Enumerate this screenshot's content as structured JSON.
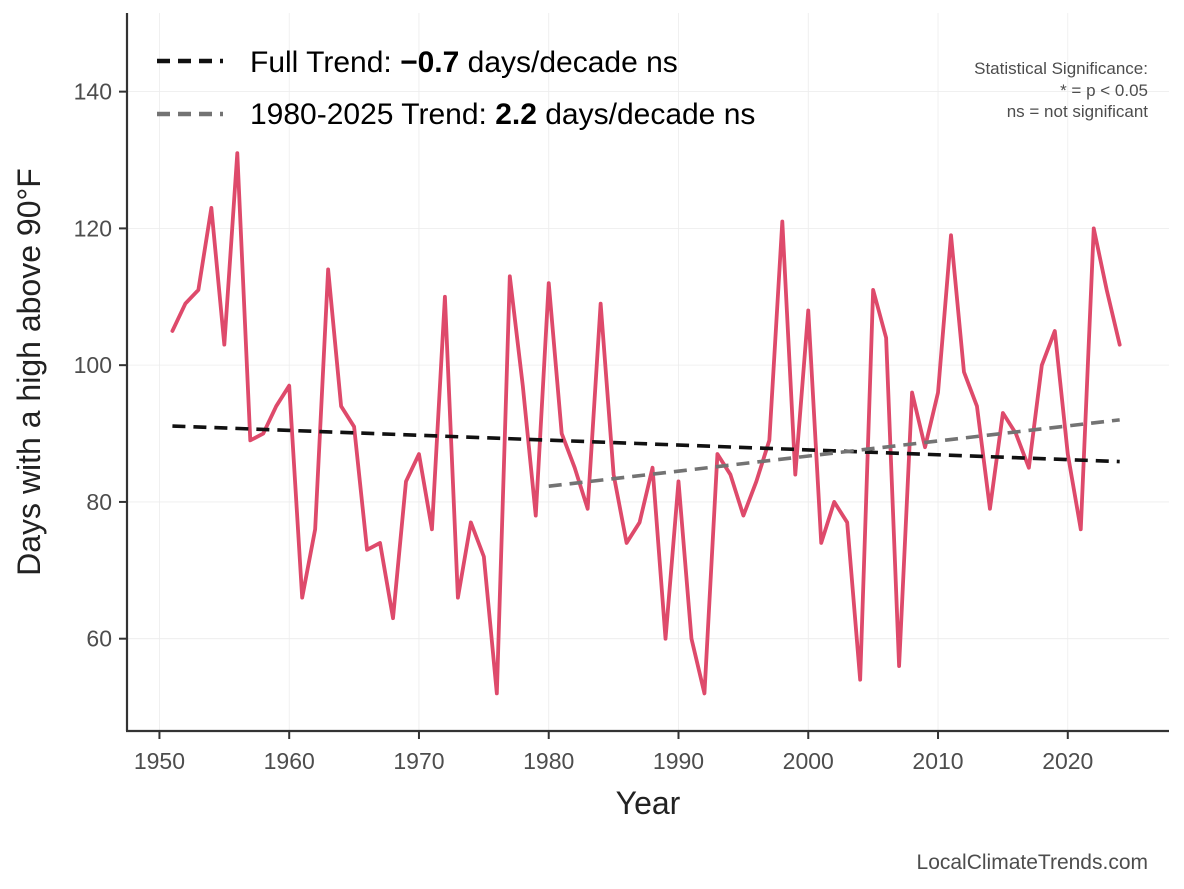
{
  "chart_data": {
    "type": "line",
    "xlabel": "Year",
    "ylabel": "Days with a high above 90°F",
    "xlim": [
      1947.5,
      2027.8
    ],
    "ylim": [
      46.5,
      151.5
    ],
    "x_ticks": [
      1950,
      1960,
      1970,
      1980,
      1990,
      2000,
      2010,
      2020
    ],
    "y_ticks": [
      60,
      80,
      100,
      120,
      140
    ],
    "grid": true,
    "series": [
      {
        "name": "Days with a high above 90°F",
        "color": "#de4a6b",
        "style": "solid",
        "x": [
          1951,
          1952,
          1953,
          1954,
          1955,
          1956,
          1957,
          1958,
          1959,
          1960,
          1961,
          1962,
          1963,
          1964,
          1965,
          1966,
          1967,
          1968,
          1969,
          1970,
          1971,
          1972,
          1973,
          1974,
          1975,
          1976,
          1977,
          1978,
          1979,
          1980,
          1981,
          1982,
          1983,
          1984,
          1985,
          1986,
          1987,
          1988,
          1989,
          1990,
          1991,
          1992,
          1993,
          1994,
          1995,
          1996,
          1997,
          1998,
          1999,
          2000,
          2001,
          2002,
          2003,
          2004,
          2005,
          2006,
          2007,
          2008,
          2009,
          2010,
          2011,
          2012,
          2013,
          2014,
          2015,
          2016,
          2017,
          2018,
          2019,
          2020,
          2021,
          2022,
          2023,
          2024
        ],
        "values": [
          105,
          109,
          111,
          123,
          103,
          131,
          89,
          90,
          94,
          97,
          66,
          76,
          114,
          94,
          91,
          73,
          74,
          63,
          83,
          87,
          76,
          110,
          66,
          77,
          72,
          52,
          113,
          97,
          78,
          112,
          90,
          85,
          79,
          109,
          84,
          74,
          77,
          85,
          60,
          83,
          60,
          52,
          87,
          84,
          78,
          83,
          89,
          121,
          84,
          108,
          74,
          80,
          77,
          54,
          111,
          104,
          56,
          96,
          88,
          96,
          119,
          99,
          94,
          79,
          93,
          90,
          85,
          100,
          105,
          87,
          76,
          120,
          111,
          103
        ]
      },
      {
        "name": "Full Trend",
        "color": "#111111",
        "style": "dashed",
        "x": [
          1951,
          2024
        ],
        "values": [
          91.1,
          85.9
        ]
      },
      {
        "name": "1980-2025 Trend",
        "color": "#737373",
        "style": "dashed",
        "x": [
          1980,
          2024
        ],
        "values": [
          82.3,
          92.0
        ]
      }
    ],
    "legend": {
      "position": "top-left",
      "items": [
        {
          "prefix": "Full Trend: ",
          "value": "−0.7",
          "suffix": " days/decade ns",
          "color": "#111111"
        },
        {
          "prefix": "1980-2025 Trend: ",
          "value": "2.2",
          "suffix": " days/decade ns",
          "color": "#737373"
        }
      ]
    },
    "significance_note": {
      "position": "top-right",
      "lines": [
        "Statistical Significance:",
        "* = p < 0.05",
        "ns = not significant"
      ]
    },
    "credit": "LocalClimateTrends.com"
  }
}
